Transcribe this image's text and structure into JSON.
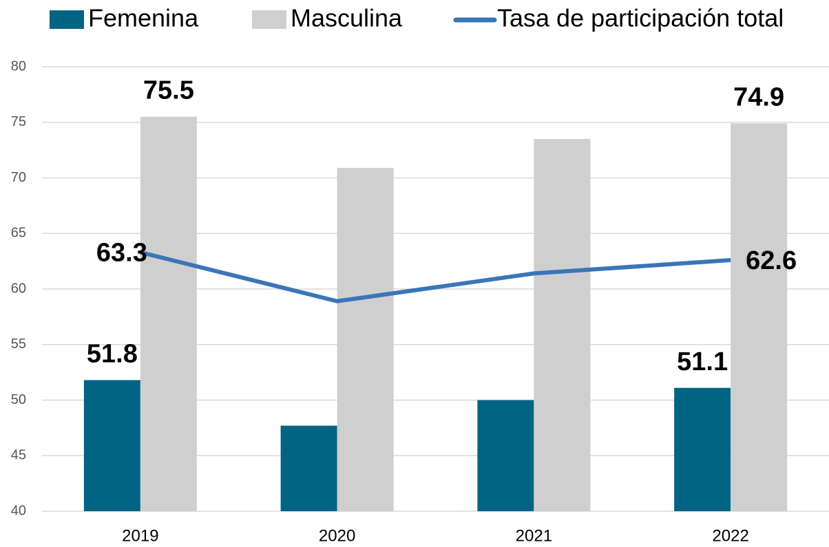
{
  "chart_data": {
    "type": "bar_line",
    "categories": [
      "2019",
      "2020",
      "2021",
      "2022"
    ],
    "series": [
      {
        "name": "Femenina",
        "type": "bar",
        "color": "#006482",
        "values": [
          51.8,
          47.7,
          50.0,
          51.1
        ],
        "value_labels": [
          "51.8",
          null,
          null,
          "51.1"
        ]
      },
      {
        "name": "Masculina",
        "type": "bar",
        "color": "#d0cfd0",
        "values": [
          75.5,
          70.9,
          73.5,
          74.9
        ],
        "value_labels": [
          "75.5",
          null,
          null,
          "74.9"
        ]
      },
      {
        "name": "Tasa de participación total",
        "type": "line",
        "color": "#3a75b8",
        "values": [
          63.3,
          58.9,
          61.4,
          62.6
        ],
        "value_labels": [
          "63.3",
          null,
          null,
          "62.6"
        ]
      }
    ],
    "ylim": [
      40,
      80
    ],
    "yticks": [
      40,
      45,
      50,
      55,
      60,
      65,
      70,
      75,
      80
    ],
    "grid": true,
    "legend": "top"
  }
}
